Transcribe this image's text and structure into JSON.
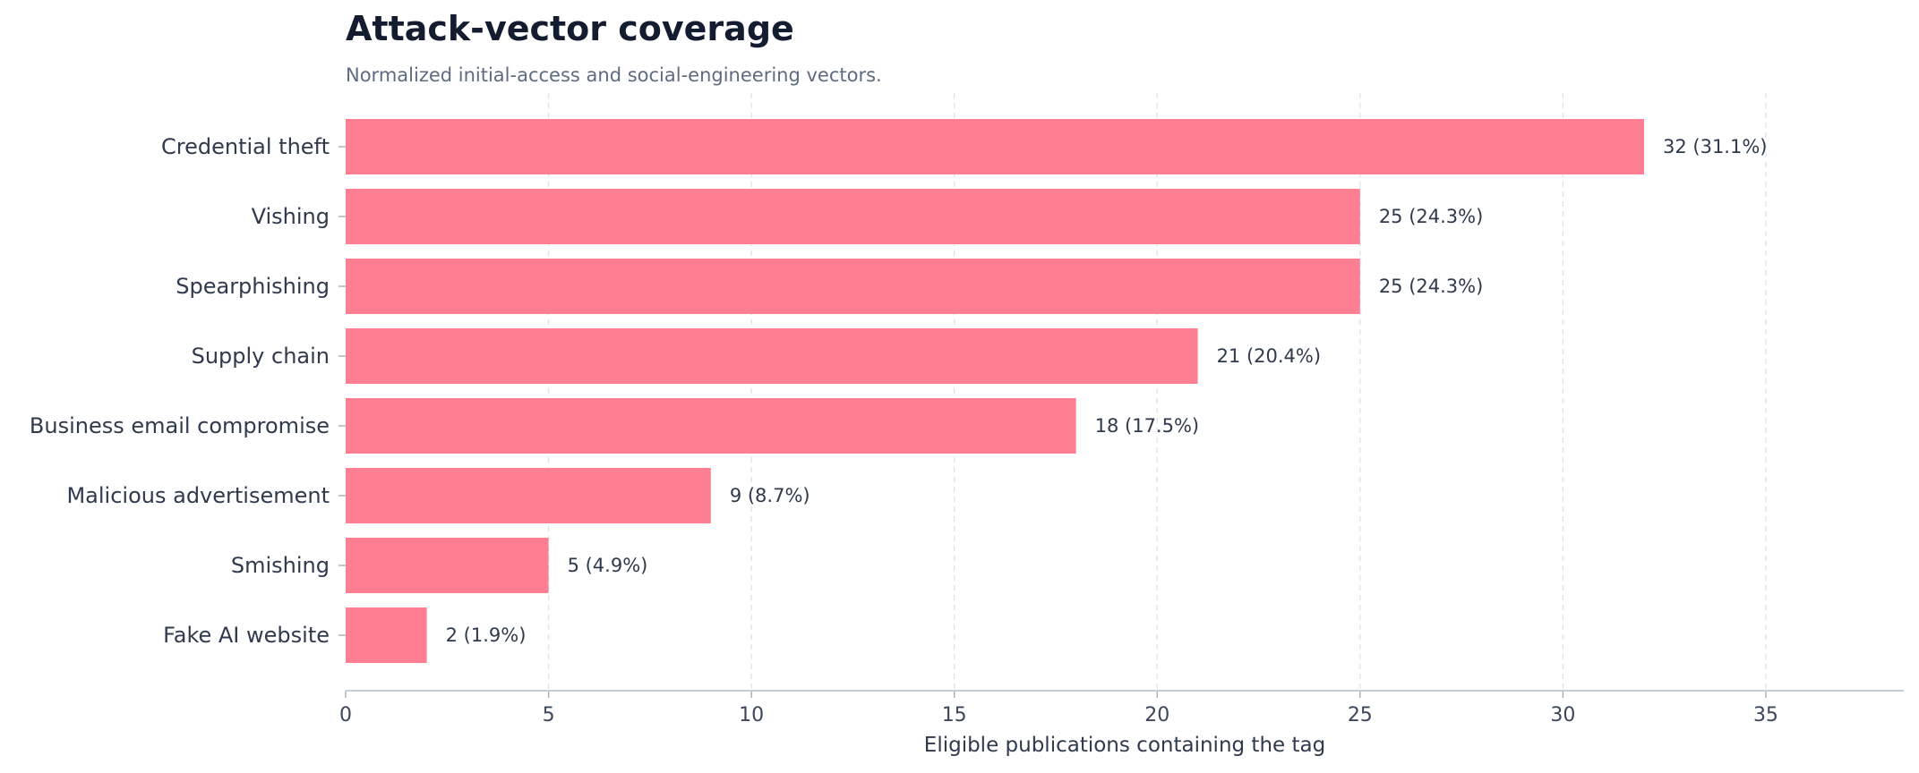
{
  "chart_data": {
    "type": "bar",
    "orientation": "horizontal",
    "title": "Attack-vector coverage",
    "subtitle": "Normalized initial-access and social-engineering vectors.",
    "xlabel": "Eligible publications containing the tag",
    "ylabel": "",
    "xlim": [
      0,
      38.4
    ],
    "xticks": [
      0,
      5,
      10,
      15,
      20,
      25,
      30,
      35
    ],
    "grid": "vertical dashed",
    "bar_color": "#fd7f91",
    "categories": [
      "Credential theft",
      "Vishing",
      "Spearphishing",
      "Supply chain",
      "Business email compromise",
      "Malicious advertisement",
      "Smishing",
      "Fake AI website"
    ],
    "values": [
      32,
      25,
      25,
      21,
      18,
      9,
      5,
      2
    ],
    "data_labels": [
      "32  (31.1%)",
      "25  (24.3%)",
      "25  (24.3%)",
      "21  (20.4%)",
      "18  (17.5%)",
      "9  (8.7%)",
      "5  (4.9%)",
      "2  (1.9%)"
    ]
  }
}
